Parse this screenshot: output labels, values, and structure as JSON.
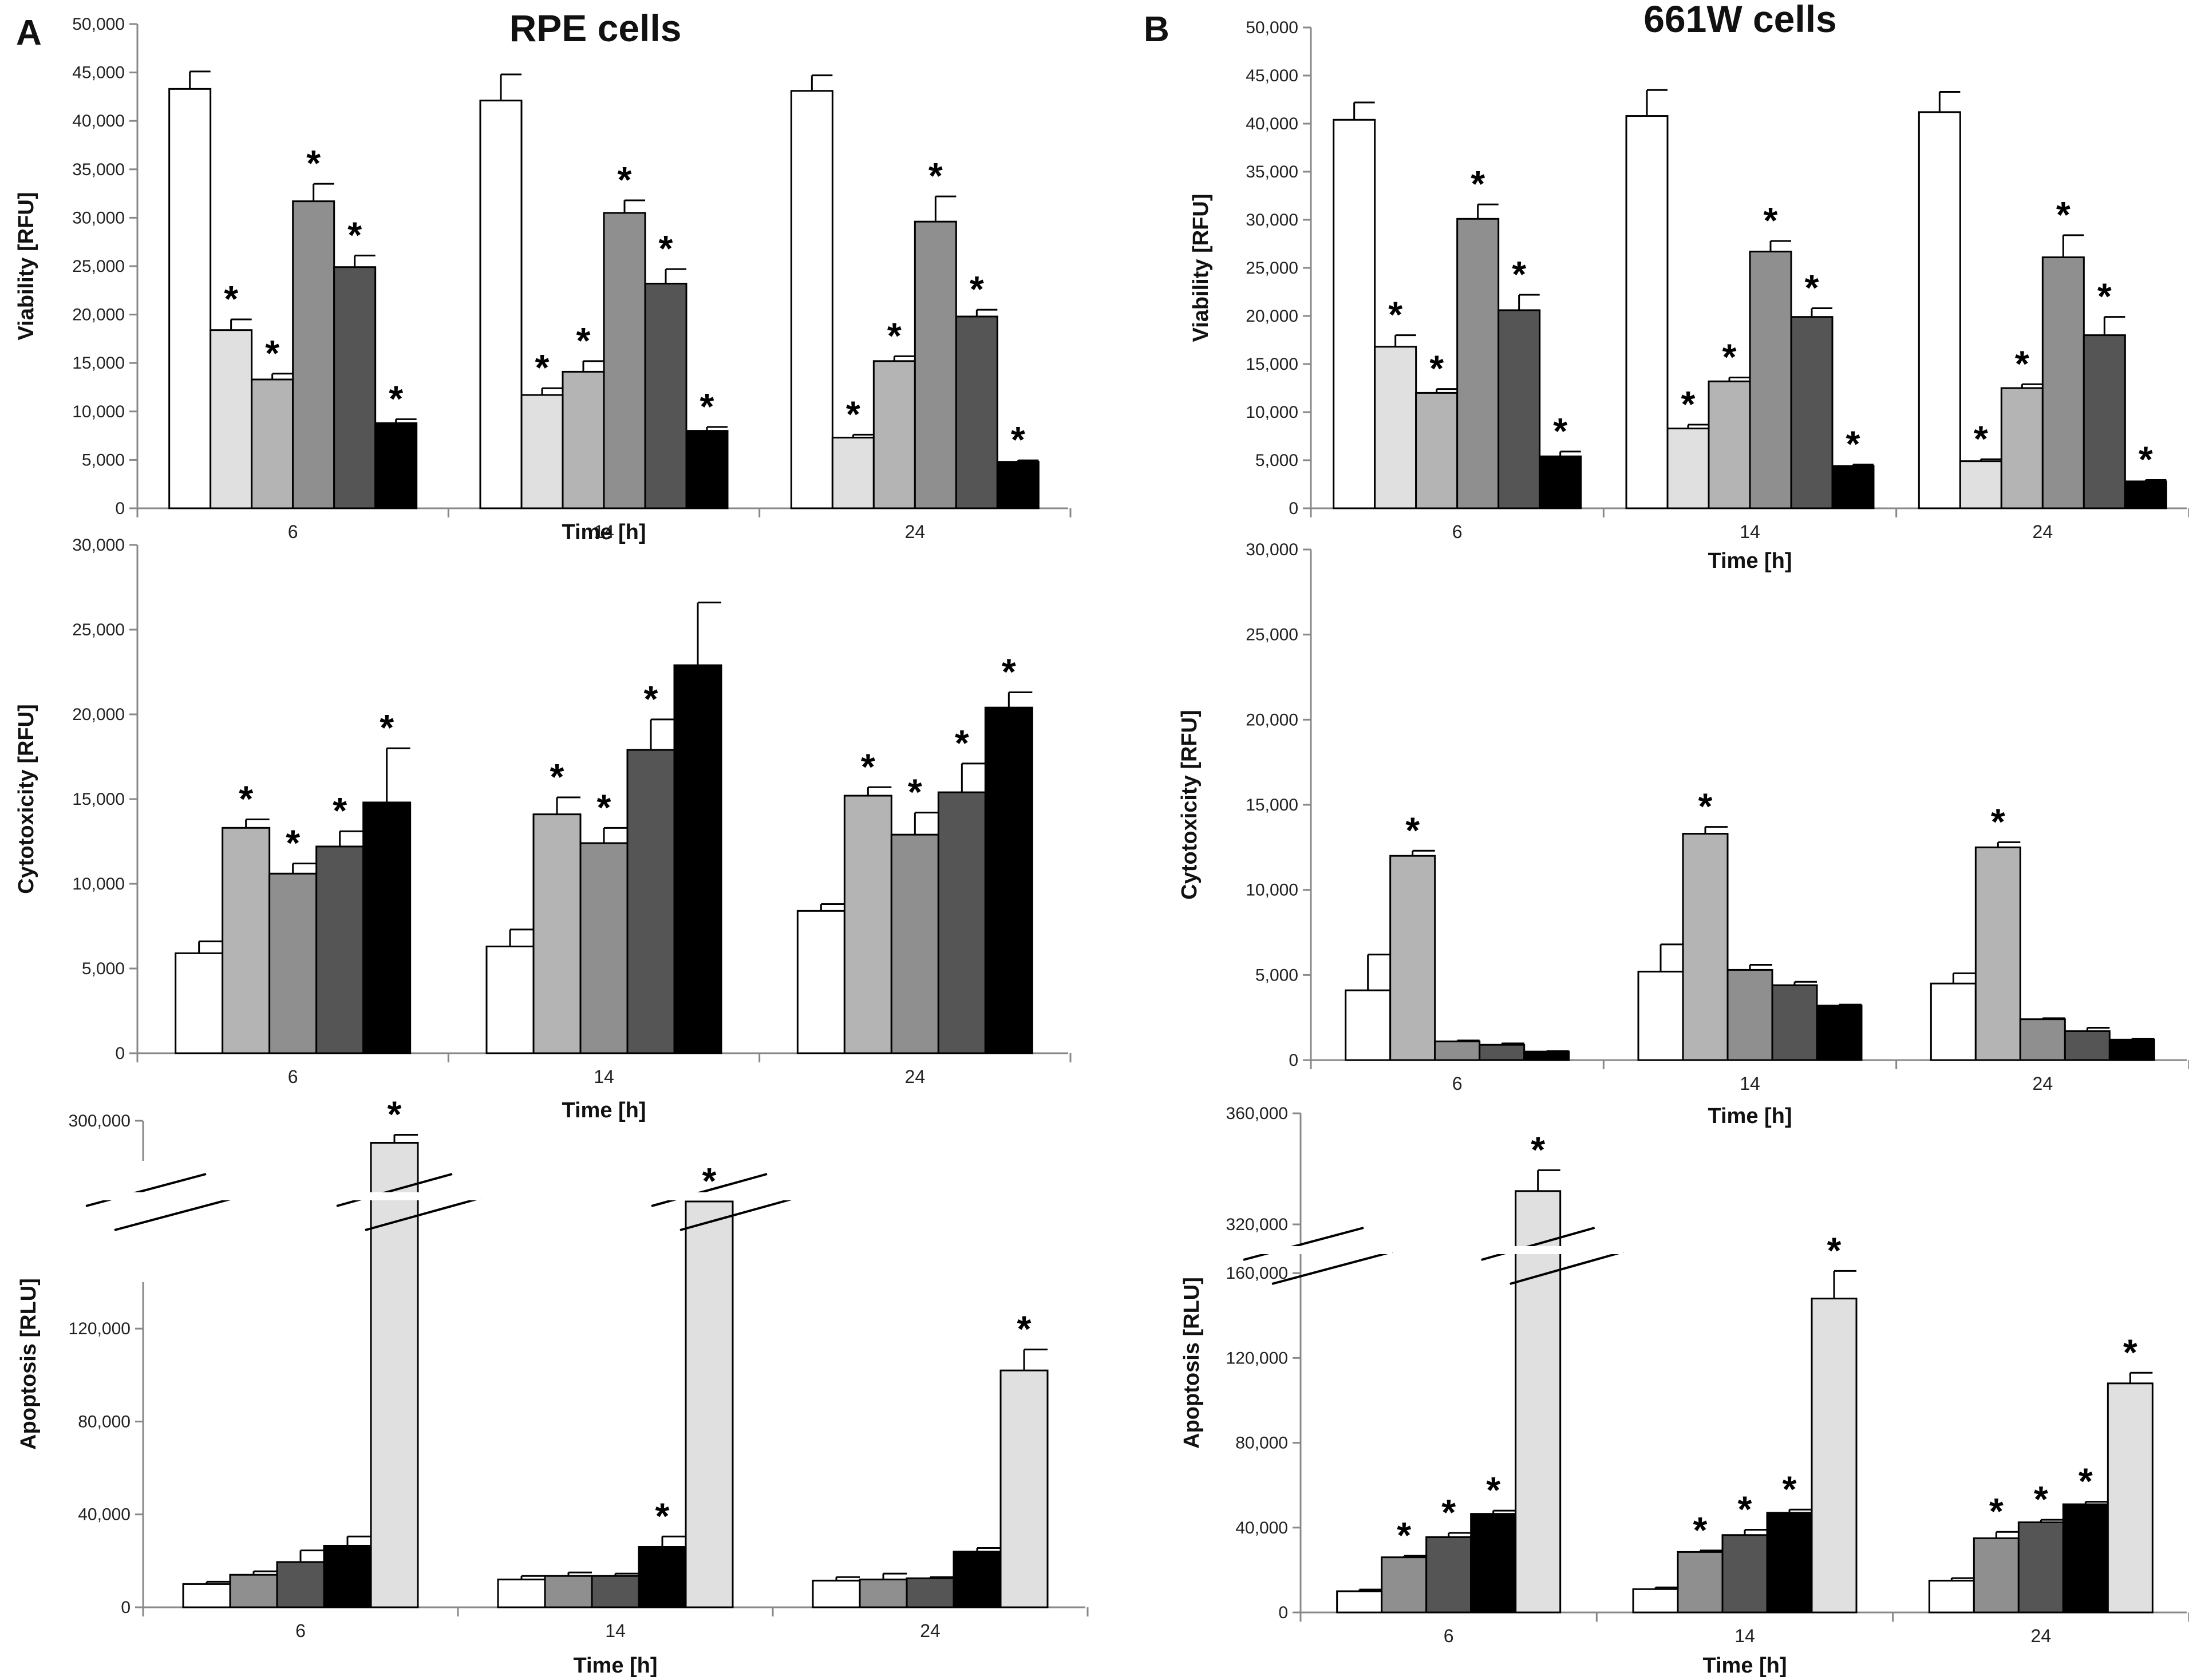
{
  "figure": {
    "panel_a": {
      "letter": "A",
      "title": "RPE cells"
    },
    "panel_b": {
      "letter": "B",
      "title": "661W cells"
    }
  },
  "chart_data": [
    {
      "id": "rpe-viability",
      "type": "bar",
      "panel": "A",
      "xlabel": "Time [h]",
      "ylabel": "Viability [RFU]",
      "categories": [
        "6",
        "14",
        "24"
      ],
      "ylim": [
        0,
        50000
      ],
      "yticks": [
        "0",
        "5,000",
        "10,000",
        "15,000",
        "20,000",
        "25,000",
        "30,000",
        "35,000",
        "40,000",
        "45,000",
        "50,000"
      ],
      "series": [
        {
          "color": "#ffffff",
          "values": [
            43300,
            42100,
            43100
          ],
          "errors": [
            1800,
            2700,
            1600
          ],
          "significant": [
            false,
            false,
            false
          ]
        },
        {
          "color": "#e0e0e0",
          "values": [
            18400,
            11700,
            7300
          ],
          "errors": [
            1100,
            700,
            300
          ],
          "significant": [
            true,
            true,
            true
          ]
        },
        {
          "color": "#b4b4b4",
          "values": [
            13300,
            14100,
            15200
          ],
          "errors": [
            600,
            1100,
            500
          ],
          "significant": [
            true,
            true,
            true
          ]
        },
        {
          "color": "#8f8f8f",
          "values": [
            31700,
            30500,
            29600
          ],
          "errors": [
            1800,
            1300,
            2600
          ],
          "significant": [
            true,
            true,
            true
          ]
        },
        {
          "color": "#555555",
          "values": [
            24900,
            23200,
            19800
          ],
          "errors": [
            1200,
            1500,
            700
          ],
          "significant": [
            true,
            true,
            true
          ]
        },
        {
          "color": "#000000",
          "values": [
            8800,
            8000,
            4800
          ],
          "errors": [
            400,
            400,
            150
          ],
          "significant": [
            true,
            true,
            true
          ]
        }
      ]
    },
    {
      "id": "w661-viability",
      "type": "bar",
      "panel": "B",
      "xlabel": "Time [h]",
      "ylabel": "Viability [RFU]",
      "categories": [
        "6",
        "14",
        "24"
      ],
      "ylim": [
        0,
        50000
      ],
      "yticks": [
        "0",
        "5,000",
        "10,000",
        "15,000",
        "20,000",
        "25,000",
        "30,000",
        "35,000",
        "40,000",
        "45,000",
        "50,000"
      ],
      "series": [
        {
          "color": "#ffffff",
          "values": [
            40400,
            40800,
            41200
          ],
          "errors": [
            1800,
            2700,
            2100
          ],
          "significant": [
            false,
            false,
            false
          ]
        },
        {
          "color": "#e0e0e0",
          "values": [
            16800,
            8300,
            4900
          ],
          "errors": [
            1200,
            400,
            200
          ],
          "significant": [
            true,
            true,
            true
          ]
        },
        {
          "color": "#b4b4b4",
          "values": [
            12000,
            13200,
            12500
          ],
          "errors": [
            400,
            400,
            400
          ],
          "significant": [
            true,
            true,
            true
          ]
        },
        {
          "color": "#8f8f8f",
          "values": [
            30100,
            26700,
            26100
          ],
          "errors": [
            1500,
            1100,
            2300
          ],
          "significant": [
            true,
            true,
            true
          ]
        },
        {
          "color": "#555555",
          "values": [
            20600,
            19900,
            18000
          ],
          "errors": [
            1600,
            900,
            1900
          ],
          "significant": [
            true,
            true,
            true
          ]
        },
        {
          "color": "#000000",
          "values": [
            5400,
            4400,
            2800
          ],
          "errors": [
            500,
            150,
            150
          ],
          "significant": [
            true,
            true,
            true
          ]
        }
      ]
    },
    {
      "id": "rpe-cytotoxicity",
      "type": "bar",
      "panel": "A",
      "xlabel": "Time [h]",
      "ylabel": "Cytotoxicity [RFU]",
      "categories": [
        "6",
        "14",
        "24"
      ],
      "ylim": [
        0,
        30000
      ],
      "yticks": [
        "0",
        "5,000",
        "10,000",
        "15,000",
        "20,000",
        "25,000",
        "30,000"
      ],
      "series": [
        {
          "color": "#ffffff",
          "values": [
            5900,
            6300,
            8400
          ],
          "errors": [
            700,
            1000,
            400
          ],
          "significant": [
            false,
            false,
            false
          ]
        },
        {
          "color": "#b4b4b4",
          "values": [
            13300,
            14100,
            15200
          ],
          "errors": [
            500,
            1000,
            500
          ],
          "significant": [
            true,
            true,
            true
          ]
        },
        {
          "color": "#8f8f8f",
          "values": [
            10600,
            12400,
            12900
          ],
          "errors": [
            600,
            900,
            1300
          ],
          "significant": [
            true,
            true,
            true
          ]
        },
        {
          "color": "#555555",
          "values": [
            12200,
            17900,
            15400
          ],
          "errors": [
            900,
            1800,
            1700
          ],
          "significant": [
            true,
            true,
            true
          ]
        },
        {
          "color": "#000000",
          "values": [
            14800,
            22900,
            20400
          ],
          "errors": [
            3200,
            3700,
            900
          ],
          "significant": [
            true,
            false,
            true
          ]
        }
      ]
    },
    {
      "id": "w661-cytotoxicity",
      "type": "bar",
      "panel": "B",
      "xlabel": "Time [h]",
      "ylabel": "Cytotoxicity [RFU]",
      "categories": [
        "6",
        "14",
        "24"
      ],
      "ylim": [
        0,
        30000
      ],
      "yticks": [
        "0",
        "5,000",
        "10,000",
        "15,000",
        "20,000",
        "25,000",
        "30,000"
      ],
      "series": [
        {
          "color": "#ffffff",
          "values": [
            4100,
            5200,
            4500
          ],
          "errors": [
            2100,
            1600,
            600
          ],
          "significant": [
            false,
            false,
            false
          ]
        },
        {
          "color": "#b4b4b4",
          "values": [
            12000,
            13300,
            12500
          ],
          "errors": [
            300,
            400,
            300
          ],
          "significant": [
            true,
            true,
            true
          ]
        },
        {
          "color": "#8f8f8f",
          "values": [
            1100,
            5300,
            2400
          ],
          "errors": [
            50,
            300,
            60
          ],
          "significant": [
            false,
            false,
            false
          ]
        },
        {
          "color": "#555555",
          "values": [
            900,
            4400,
            1700
          ],
          "errors": [
            80,
            200,
            200
          ],
          "significant": [
            false,
            false,
            false
          ]
        },
        {
          "color": "#000000",
          "values": [
            500,
            3200,
            1200
          ],
          "errors": [
            30,
            60,
            60
          ],
          "significant": [
            false,
            false,
            false
          ]
        }
      ]
    },
    {
      "id": "rpe-apoptosis",
      "type": "bar",
      "panel": "A",
      "xlabel": "Time [h]",
      "ylabel": "Apoptosis [RLU]",
      "categories": [
        "6",
        "14",
        "24"
      ],
      "ylim": [
        0,
        300000
      ],
      "axis_break": [
        140000,
        280000
      ],
      "yticks": [
        "0",
        "40,000",
        "80,000",
        "120,000",
        "300,000"
      ],
      "series": [
        {
          "color": "#ffffff",
          "values": [
            10000,
            12000,
            11500
          ],
          "errors": [
            1000,
            1500,
            1500
          ],
          "significant": [
            false,
            false,
            false
          ]
        },
        {
          "color": "#8f8f8f",
          "values": [
            14000,
            13500,
            12000
          ],
          "errors": [
            1500,
            1500,
            2500
          ],
          "significant": [
            false,
            false,
            false
          ]
        },
        {
          "color": "#555555",
          "values": [
            19500,
            13500,
            12500
          ],
          "errors": [
            5000,
            1000,
            500
          ],
          "significant": [
            false,
            false,
            false
          ]
        },
        {
          "color": "#000000",
          "values": [
            26500,
            26000,
            24000
          ],
          "errors": [
            4000,
            4500,
            1500
          ],
          "significant": [
            false,
            true,
            false
          ]
        },
        {
          "color": "#e0e0e0",
          "values": [
            289000,
            145000,
            102000
          ],
          "errors": [
            4000,
            7500,
            9000
          ],
          "significant": [
            true,
            true,
            true
          ]
        }
      ]
    },
    {
      "id": "w661-apoptosis",
      "type": "bar",
      "panel": "B",
      "xlabel": "Time [h]",
      "ylabel": "Apoptosis [RLU]",
      "categories": [
        "6",
        "14",
        "24"
      ],
      "ylim": [
        0,
        360000
      ],
      "axis_break": [
        180000,
        300000
      ],
      "yticks": [
        "0",
        "40,000",
        "80,000",
        "120,000",
        "160,000",
        "320,000",
        "360,000"
      ],
      "series": [
        {
          "color": "#ffffff",
          "values": [
            10000,
            11000,
            15000
          ],
          "errors": [
            800,
            800,
            1200
          ],
          "significant": [
            false,
            false,
            false
          ]
        },
        {
          "color": "#8f8f8f",
          "values": [
            26000,
            28500,
            35000
          ],
          "errors": [
            700,
            700,
            3000
          ],
          "significant": [
            true,
            true,
            true
          ]
        },
        {
          "color": "#555555",
          "values": [
            35500,
            36500,
            42500
          ],
          "errors": [
            2000,
            2500,
            1200
          ],
          "significant": [
            true,
            true,
            true
          ]
        },
        {
          "color": "#000000",
          "values": [
            46500,
            47000,
            51000
          ],
          "errors": [
            1500,
            1500,
            1200
          ],
          "significant": [
            true,
            true,
            true
          ]
        },
        {
          "color": "#e0e0e0",
          "values": [
            332000,
            148000,
            108000
          ],
          "errors": [
            7500,
            13000,
            5000
          ],
          "significant": [
            true,
            true,
            true
          ]
        }
      ]
    }
  ]
}
